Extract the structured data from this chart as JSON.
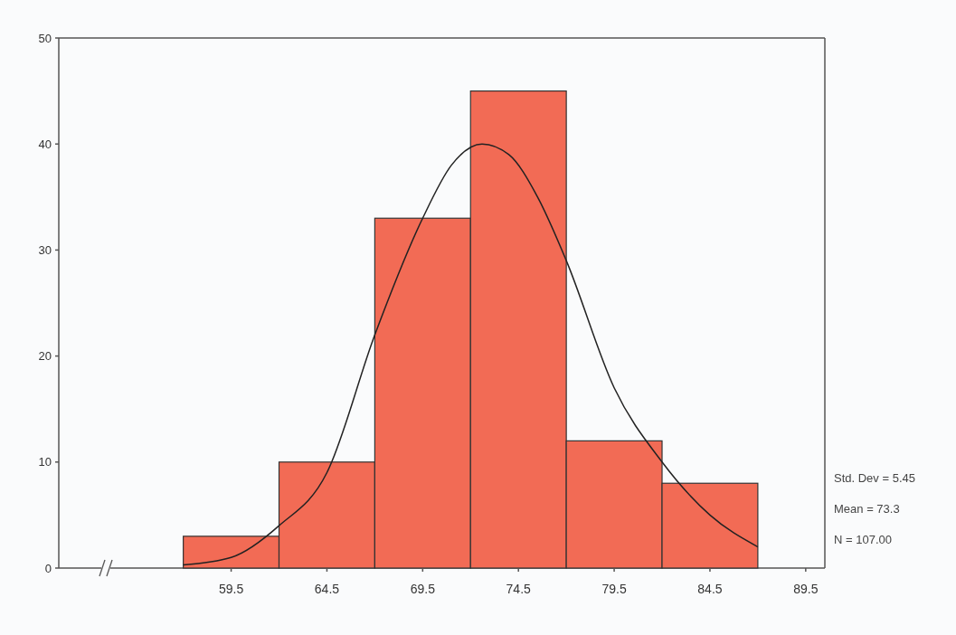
{
  "chart_data": {
    "type": "histogram",
    "bins": [
      57,
      62,
      67,
      72,
      77,
      82,
      87
    ],
    "values": [
      3,
      10,
      33,
      45,
      12,
      8
    ],
    "color": "#f26b55",
    "xlim": [
      50.5,
      90.5
    ],
    "xticks": [
      59.5,
      64.5,
      69.5,
      74.5,
      79.5,
      84.5,
      89.5
    ],
    "ylim": [
      0,
      50
    ],
    "yticks": [
      0,
      10,
      20,
      30,
      40,
      50
    ],
    "marker": "none",
    "line_style": "solid",
    "series": [
      {
        "type": "line",
        "color": "#222222",
        "x": [
          57,
          59.5,
          62,
          64.5,
          67,
          69.5,
          71,
          72.6,
          74,
          75.5,
          77,
          79.5,
          82,
          84.5,
          87
        ],
        "values": [
          0.3,
          1,
          4,
          9,
          22,
          33,
          38,
          40,
          39,
          35,
          29,
          17,
          10,
          5,
          2
        ]
      }
    ],
    "annotations": [
      "Std. Dev = 5.45",
      "Mean = 73.3",
      "N = 107.00"
    ]
  }
}
